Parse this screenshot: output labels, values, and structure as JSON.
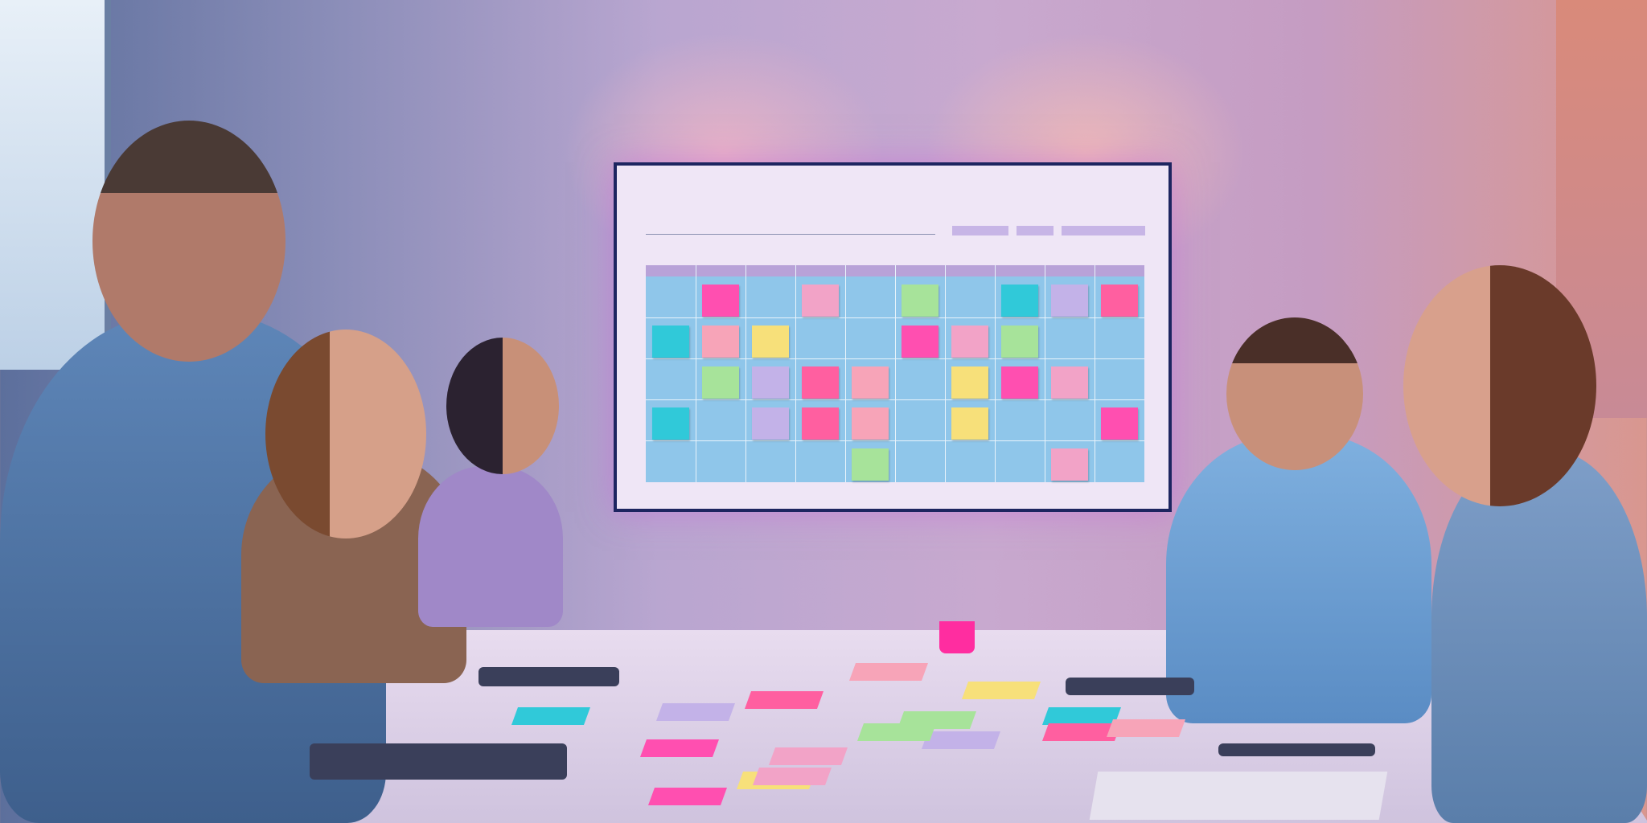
{
  "scene": {
    "screen_background": "#efe6f6",
    "calendar_grid_color": "#8fc6ea",
    "sticky_note_colors": [
      "#ff4fb0",
      "#f2a3c7",
      "#a7e39a",
      "#30c9d9",
      "#c3b2e8",
      "#ff5fa0",
      "#f7a4b8",
      "#f7e07a"
    ]
  }
}
